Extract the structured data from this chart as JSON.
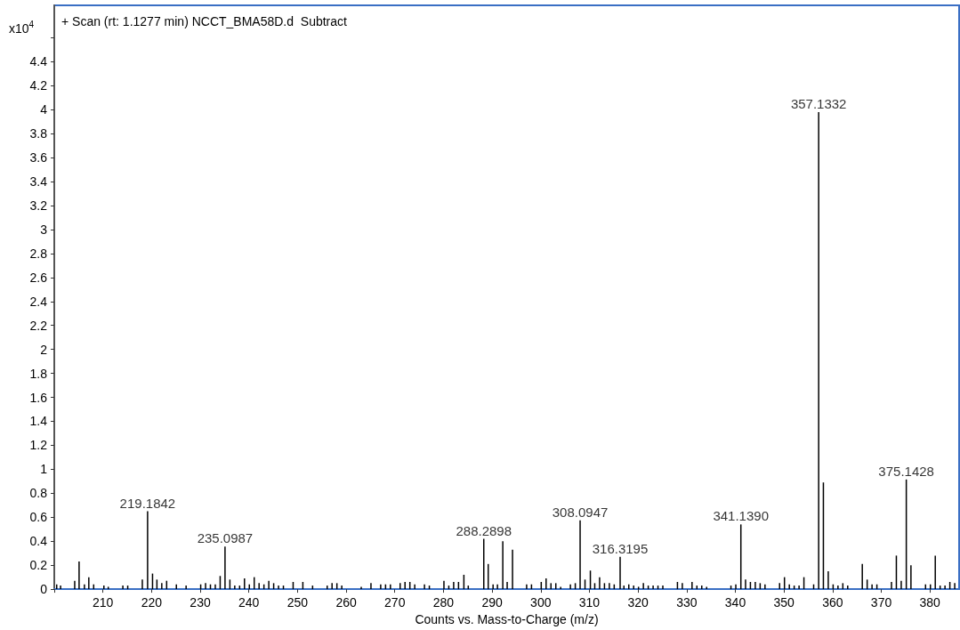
{
  "chart_data": {
    "type": "bar",
    "title": "+ Scan (rt: 1.1277 min) NCCT_BMA58D.d  Subtract",
    "xlabel": "Counts vs. Mass-to-Charge (m/z)",
    "ylabel": "x10$^{4}$",
    "x": [
      200.5,
      201.3,
      204.2,
      205.1,
      206.2,
      207.1,
      208.1,
      210.2,
      211.1,
      214.1,
      215.1,
      218.1,
      219.1842,
      220.2,
      221.1,
      222.1,
      223.1,
      225.1,
      227.1,
      230.1,
      231.1,
      232.1,
      233.1,
      234.1,
      235.0987,
      236.1,
      237.1,
      238.1,
      239.1,
      240.1,
      241.1,
      242.1,
      243.1,
      244.1,
      245.1,
      246.1,
      247.1,
      249.1,
      251.1,
      253.1,
      256.1,
      257.1,
      258.1,
      259.1,
      263.1,
      265.1,
      267.1,
      268.1,
      269.1,
      271.1,
      272.1,
      273.1,
      274.1,
      276.1,
      277.1,
      280.1,
      281.1,
      282.1,
      283.1,
      284.2,
      285.1,
      288.2898,
      289.2,
      290.2,
      291.1,
      292.2,
      293.1,
      294.2,
      297.1,
      298.1,
      300.1,
      301.1,
      302.1,
      303.1,
      304.1,
      306.1,
      307.1,
      308.0947,
      309.1,
      310.2,
      311.1,
      312.1,
      313.1,
      314.1,
      315.1,
      316.3195,
      317.1,
      318.1,
      319.1,
      320.1,
      321.1,
      322.1,
      323.1,
      324.1,
      325.1,
      328.1,
      329.1,
      331.1,
      332.1,
      333.1,
      334.1,
      339.1,
      340.1,
      341.139,
      342.1,
      343.1,
      344.1,
      345.1,
      346.1,
      349.1,
      350.1,
      351.1,
      352.1,
      353.1,
      354.1,
      356.1,
      357.1332,
      358.1,
      359.1,
      360.1,
      361.1,
      362.1,
      363.1,
      366.1,
      367.1,
      368.1,
      369.1,
      372.1,
      373.1,
      374.1,
      375.1428,
      376.1,
      379.1,
      380.1,
      381.1,
      382.1,
      383.1,
      384.1,
      385.1
    ],
    "series": [
      {
        "color": "#000000",
        "values": [
          0.04,
          0.03,
          0.07,
          0.23,
          0.04,
          0.1,
          0.04,
          0.03,
          0.02,
          0.03,
          0.03,
          0.08,
          0.65,
          0.13,
          0.08,
          0.05,
          0.07,
          0.04,
          0.03,
          0.04,
          0.05,
          0.04,
          0.04,
          0.11,
          0.355,
          0.08,
          0.03,
          0.03,
          0.09,
          0.04,
          0.1,
          0.05,
          0.04,
          0.07,
          0.05,
          0.03,
          0.03,
          0.06,
          0.06,
          0.03,
          0.03,
          0.05,
          0.05,
          0.03,
          0.02,
          0.05,
          0.04,
          0.04,
          0.04,
          0.05,
          0.06,
          0.06,
          0.04,
          0.04,
          0.03,
          0.07,
          0.03,
          0.06,
          0.06,
          0.12,
          0.03,
          0.42,
          0.21,
          0.04,
          0.04,
          0.4,
          0.06,
          0.33,
          0.04,
          0.04,
          0.06,
          0.09,
          0.05,
          0.05,
          0.02,
          0.04,
          0.05,
          0.575,
          0.08,
          0.155,
          0.05,
          0.1,
          0.05,
          0.05,
          0.04,
          0.27,
          0.03,
          0.04,
          0.03,
          0.02,
          0.05,
          0.03,
          0.03,
          0.03,
          0.03,
          0.06,
          0.05,
          0.06,
          0.03,
          0.03,
          0.02,
          0.03,
          0.04,
          0.54,
          0.08,
          0.06,
          0.06,
          0.05,
          0.04,
          0.05,
          0.1,
          0.04,
          0.03,
          0.03,
          0.1,
          0.04,
          3.98,
          0.89,
          0.15,
          0.04,
          0.03,
          0.05,
          0.03,
          0.21,
          0.08,
          0.04,
          0.04,
          0.06,
          0.28,
          0.07,
          0.915,
          0.2,
          0.04,
          0.04,
          0.28,
          0.03,
          0.03,
          0.06,
          0.05
        ]
      }
    ],
    "annotations": [
      {
        "text": "219.1842",
        "x": 219.1842,
        "y": 0.65
      },
      {
        "text": "235.0987",
        "x": 235.0987,
        "y": 0.355
      },
      {
        "text": "288.2898",
        "x": 288.2898,
        "y": 0.42
      },
      {
        "text": "308.0947",
        "x": 308.0947,
        "y": 0.575
      },
      {
        "text": "316.3195",
        "x": 316.3195,
        "y": 0.27
      },
      {
        "text": "341.1390",
        "x": 341.139,
        "y": 0.54
      },
      {
        "text": "357.1332",
        "x": 357.1332,
        "y": 3.98
      },
      {
        "text": "375.1428",
        "x": 375.1428,
        "y": 0.915
      }
    ],
    "xlim": [
      200,
      386
    ],
    "xticks": [
      {
        "value": 200,
        "label": null
      },
      210,
      220,
      230,
      240,
      250,
      260,
      270,
      280,
      290,
      300,
      310,
      320,
      330,
      340,
      350,
      360,
      370,
      380
    ],
    "ylim": [
      0,
      4.87
    ],
    "yticks": [
      0,
      0.2,
      0.4,
      0.6,
      0.8,
      1,
      1.2,
      1.4,
      1.6,
      1.8,
      2,
      2.2,
      2.4,
      2.6,
      2.8,
      3,
      3.2,
      3.4,
      3.6,
      3.8,
      4,
      4.2,
      4.4,
      {
        "value": 4.6,
        "label": null
      }
    ],
    "grid": false
  }
}
